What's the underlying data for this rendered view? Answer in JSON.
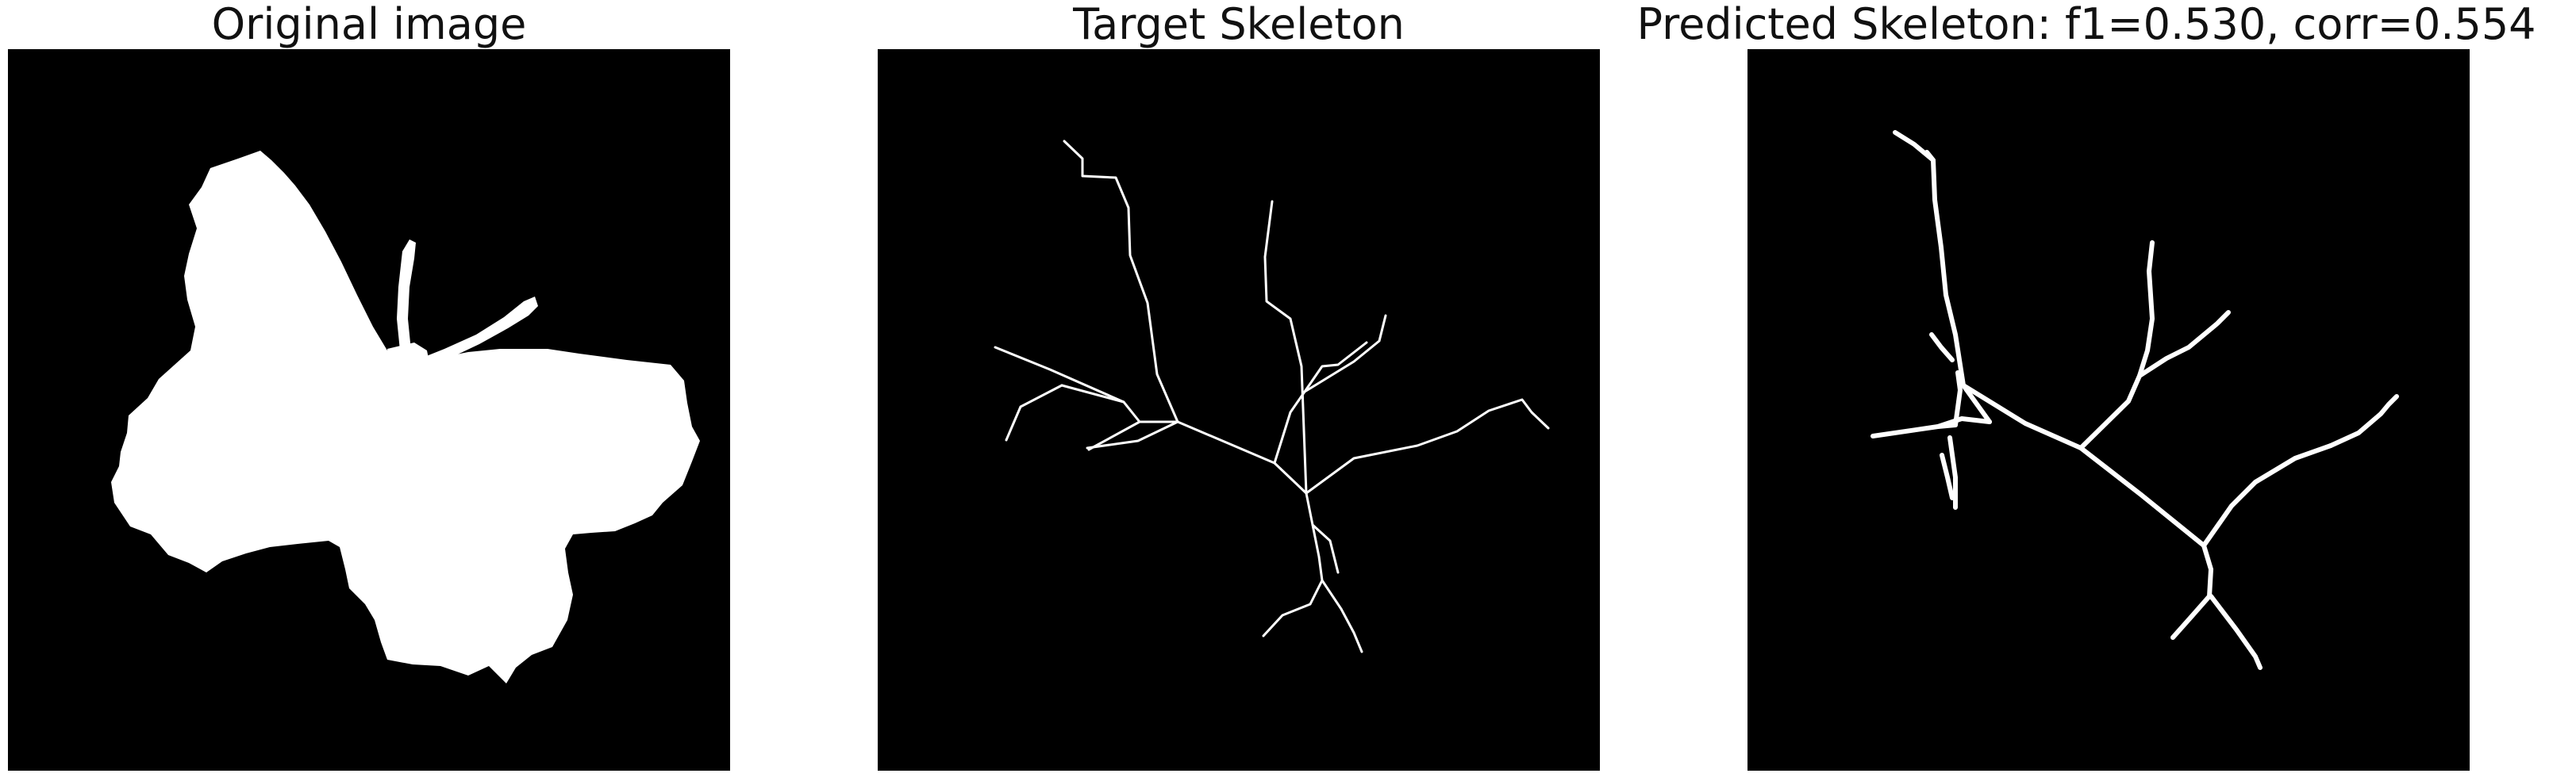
{
  "panels": [
    {
      "title": "Original image"
    },
    {
      "title": "Target Skeleton"
    },
    {
      "title": "Predicted Skeleton: f1=0.530, corr=0.554"
    }
  ],
  "metrics": {
    "f1": 0.53,
    "corr": 0.554
  },
  "colors": {
    "background": "#000000",
    "foreground": "#ffffff",
    "title_text": "#111111"
  }
}
